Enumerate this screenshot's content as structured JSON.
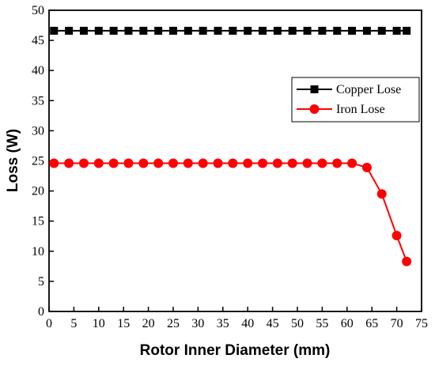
{
  "chart_data": {
    "type": "line",
    "title": "",
    "xlabel": "Rotor Inner Diameter (mm)",
    "ylabel": "Loss (W)",
    "xlim": [
      0,
      75
    ],
    "ylim": [
      0,
      50
    ],
    "xticks": [
      0,
      5,
      10,
      15,
      20,
      25,
      30,
      35,
      40,
      45,
      50,
      55,
      60,
      65,
      70,
      75
    ],
    "yticks": [
      0,
      5,
      10,
      15,
      20,
      25,
      30,
      35,
      40,
      45,
      50
    ],
    "grid": false,
    "legend_position": "right",
    "series": [
      {
        "name": "Copper Lose",
        "color": "#000000",
        "marker": "square",
        "x": [
          1,
          4,
          7,
          10,
          13,
          16,
          19,
          22,
          25,
          28,
          31,
          34,
          37,
          40,
          43,
          46,
          49,
          52,
          55,
          58,
          61,
          64,
          67,
          70,
          72
        ],
        "y": [
          46.6,
          46.6,
          46.6,
          46.6,
          46.6,
          46.6,
          46.6,
          46.6,
          46.6,
          46.6,
          46.6,
          46.6,
          46.6,
          46.6,
          46.6,
          46.6,
          46.6,
          46.6,
          46.6,
          46.6,
          46.6,
          46.6,
          46.6,
          46.6,
          46.6
        ]
      },
      {
        "name": "Iron Lose",
        "color": "#ff0000",
        "marker": "circle",
        "x": [
          1,
          4,
          7,
          10,
          13,
          16,
          19,
          22,
          25,
          28,
          31,
          34,
          37,
          40,
          43,
          46,
          49,
          52,
          55,
          58,
          61,
          64,
          67,
          70,
          72
        ],
        "y": [
          24.6,
          24.6,
          24.6,
          24.6,
          24.6,
          24.6,
          24.6,
          24.6,
          24.6,
          24.6,
          24.6,
          24.6,
          24.6,
          24.6,
          24.6,
          24.6,
          24.6,
          24.6,
          24.6,
          24.6,
          24.6,
          23.9,
          19.5,
          12.6,
          8.3
        ]
      }
    ]
  }
}
